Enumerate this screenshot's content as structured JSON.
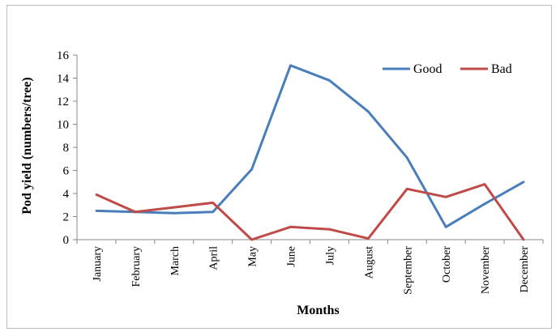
{
  "chart_data": {
    "type": "line",
    "categories": [
      "January",
      "February",
      "March",
      "April",
      "May",
      "June",
      "July",
      "August",
      "September",
      "October",
      "November",
      "December"
    ],
    "series": [
      {
        "name": "Good",
        "color": "#4a7ebb",
        "values": [
          2.5,
          2.4,
          2.3,
          2.4,
          6.1,
          15.1,
          13.8,
          11.1,
          7.1,
          1.1,
          3.1,
          5.0
        ]
      },
      {
        "name": "Bad",
        "color": "#be4b48",
        "values": [
          3.9,
          2.4,
          2.8,
          3.2,
          0.0,
          1.1,
          0.9,
          0.1,
          4.4,
          3.7,
          4.8,
          0.0
        ]
      }
    ],
    "xlabel": "Months",
    "ylabel": "Pod yield  (numbers/tree)",
    "ylim": [
      0,
      16
    ],
    "yticks": [
      0,
      2,
      4,
      6,
      8,
      10,
      12,
      14,
      16
    ],
    "grid": false,
    "legend_position": "top-right"
  }
}
